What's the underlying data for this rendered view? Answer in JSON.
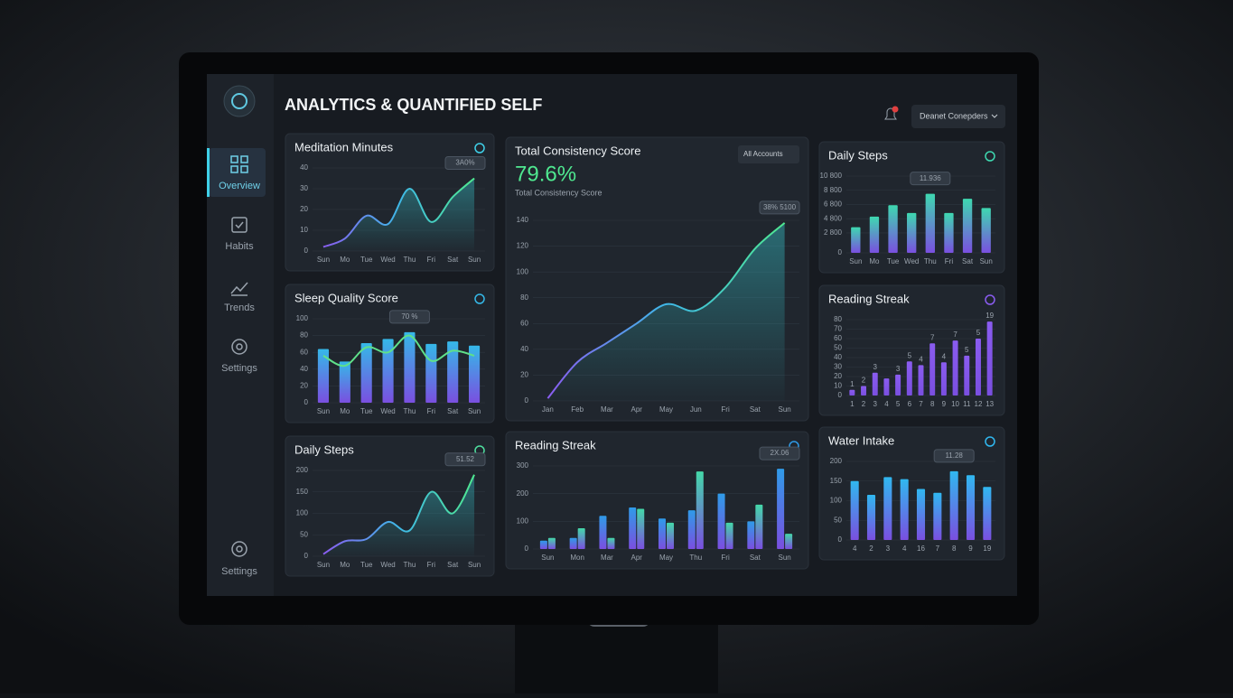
{
  "header": {
    "title": "ANALYTICS & QUANTIFIED SELF",
    "account": "Deanet Conepders"
  },
  "nav": [
    "Overview",
    "Habits",
    "Trends",
    "Settings",
    "Settings"
  ],
  "chart_data": [
    {
      "type": "line",
      "title": "Meditation Minutes",
      "annotation": "3A0%",
      "categories": [
        "Sun",
        "Mo",
        "Tue",
        "Wed",
        "Thu",
        "Fri",
        "Sat",
        "Sun"
      ],
      "series": [
        {
          "color": "#3fd0e8",
          "values": [
            2,
            6,
            17,
            13,
            30,
            14,
            26,
            35
          ]
        }
      ],
      "ylim": [
        0,
        40
      ],
      "yticks": [
        0,
        10,
        20,
        30,
        40
      ]
    },
    {
      "type": "bar",
      "title": "Sleep Quality Score",
      "annotation": "70 %",
      "categories": [
        "Sun",
        "Mo",
        "Tue",
        "Wed",
        "Thu",
        "Fri",
        "Sat",
        "Sun"
      ],
      "series": [
        {
          "color": "#35b8e8",
          "values": [
            64,
            49,
            71,
            76,
            84,
            70,
            73,
            68
          ]
        },
        {
          "type": "line",
          "color": "#5fe08a",
          "values": [
            56,
            44,
            66,
            60,
            80,
            50,
            62,
            56
          ]
        }
      ],
      "ylim": [
        0,
        100
      ],
      "yticks": [
        0,
        20,
        40,
        60,
        80,
        100
      ]
    },
    {
      "type": "line",
      "title": "Daily Steps",
      "annotation": "51.52",
      "categories": [
        "Sun",
        "Mo",
        "Tue",
        "Wed",
        "Thu",
        "Fri",
        "Sat",
        "Sun"
      ],
      "series": [
        {
          "color": "#4fe0a0",
          "values": [
            5,
            35,
            40,
            80,
            60,
            150,
            100,
            190
          ]
        }
      ],
      "ylim": [
        0,
        200
      ],
      "yticks": [
        0,
        50,
        100,
        150,
        200
      ]
    },
    {
      "type": "line",
      "title": "Total Consistency Score",
      "headline": "79.6%",
      "subheadline": "Total Consistency Score",
      "dropdown": "All Accounts",
      "annotation": "38% 5100",
      "categories": [
        "Jan",
        "Feb",
        "Mar",
        "Apr",
        "May",
        "Jun",
        "Fri",
        "Sat",
        "Sun"
      ],
      "series": [
        {
          "color": "#4fe890",
          "values": [
            2,
            30,
            45,
            60,
            75,
            70,
            88,
            118,
            138
          ]
        }
      ],
      "ylim": [
        0,
        140
      ],
      "yticks": [
        0,
        20,
        40,
        60,
        80,
        100,
        120,
        140
      ]
    },
    {
      "type": "bar",
      "title": "Reading Streak",
      "annotation": "2X.06",
      "categories": [
        "Sun",
        "Mon",
        "Mar",
        "Apr",
        "May",
        "Thu",
        "Fri",
        "Sat",
        "Sun"
      ],
      "series": [
        {
          "color": "#2f9be8",
          "values": [
            30,
            40,
            120,
            150,
            110,
            140,
            200,
            100,
            290
          ]
        },
        {
          "color": "#44d8a8",
          "values": [
            40,
            75,
            40,
            145,
            95,
            280,
            95,
            160,
            55
          ]
        }
      ],
      "ylim": [
        0,
        300
      ],
      "yticks": [
        0,
        100,
        200,
        300
      ]
    },
    {
      "type": "bar",
      "title": "Daily Steps",
      "annotation": "11.936",
      "categories": [
        "Sun",
        "Mo",
        "Tue",
        "Wed",
        "Thu",
        "Fri",
        "Sat",
        "Sun"
      ],
      "series": [
        {
          "color": "#3ed8b0",
          "values": [
            3600,
            5100,
            6700,
            5600,
            8300,
            5600,
            7600,
            6300
          ]
        }
      ],
      "ylim": [
        0,
        10800
      ],
      "yticks": [
        0,
        {
          "value": 2800,
          "label": "2 800"
        },
        {
          "value": 4800,
          "label": "4 800"
        },
        {
          "value": 6800,
          "label": "6 800"
        },
        {
          "value": 8800,
          "label": "8 800"
        },
        {
          "value": 10800,
          "label": "10 800"
        }
      ]
    },
    {
      "type": "bar",
      "title": "Reading Streak",
      "categories": [
        "1",
        "2",
        "3",
        "4",
        "5",
        "6",
        "7",
        "8",
        "9",
        "10",
        "11",
        "12",
        "13"
      ],
      "series": [
        {
          "color": "#8a5cf0",
          "values": [
            6,
            10,
            24,
            18,
            22,
            36,
            32,
            55,
            35,
            58,
            42,
            60,
            78
          ]
        }
      ],
      "bar_labels": [
        "1",
        "2",
        "3",
        null,
        "3",
        "5",
        "4",
        "7",
        "4",
        "7",
        "5",
        "5",
        "19"
      ],
      "ylim": [
        0,
        80
      ],
      "yticks": [
        0,
        10,
        20,
        30,
        40,
        50,
        60,
        70,
        80
      ]
    },
    {
      "type": "bar",
      "title": "Water Intake",
      "annotation": "11.28",
      "categories": [
        "4",
        "2",
        "3",
        "4",
        "16",
        "7",
        "8",
        "9",
        "19"
      ],
      "series": [
        {
          "color": "#30b8f0",
          "values": [
            150,
            115,
            160,
            155,
            130,
            120,
            175,
            165,
            135
          ]
        }
      ],
      "ylim": [
        0,
        200
      ],
      "yticks": [
        0,
        50,
        100,
        150,
        200
      ]
    }
  ]
}
